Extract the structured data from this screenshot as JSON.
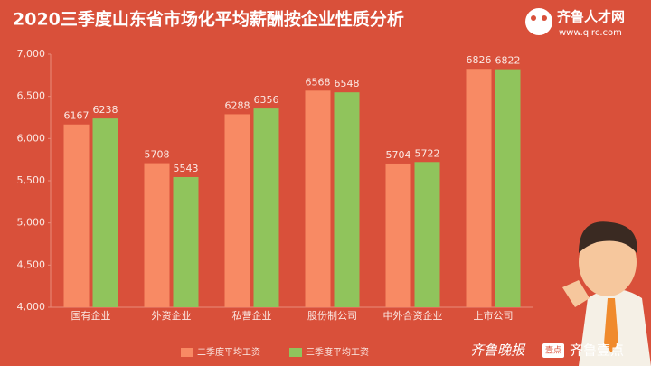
{
  "chart_data": {
    "type": "bar",
    "title": "2020三季度山东省市场化平均薪酬按企业性质分析",
    "categories": [
      "国有企业",
      "外资企业",
      "私营企业",
      "股份制公司",
      "中外合资企业",
      "上市公司"
    ],
    "series": [
      {
        "name": "二季度平均工资",
        "color": "#f88a64",
        "values": [
          6167,
          5708,
          6288,
          6568,
          5704,
          6826
        ]
      },
      {
        "name": "三季度平均工资",
        "color": "#90c45c",
        "values": [
          6238,
          5543,
          6356,
          6548,
          5722,
          6822
        ]
      }
    ],
    "ylim": [
      4000,
      7000
    ],
    "yticks": [
      {
        "value": 4000,
        "label": "4,000"
      },
      {
        "value": 4500,
        "label": "4,500"
      },
      {
        "value": 5000,
        "label": "5,000"
      },
      {
        "value": 5500,
        "label": "5,500"
      },
      {
        "value": 6000,
        "label": "6,000"
      },
      {
        "value": 6500,
        "label": "6,500"
      },
      {
        "value": 7000,
        "label": "7,000"
      }
    ],
    "grid": false,
    "legend": "bottom"
  },
  "branding": {
    "site_name": "齐鲁人才网",
    "site_url": "www.qlrc.com",
    "footer_left": "齐鲁晚报",
    "footer_badge": "壹点",
    "footer_right": "齐鲁壹点"
  }
}
